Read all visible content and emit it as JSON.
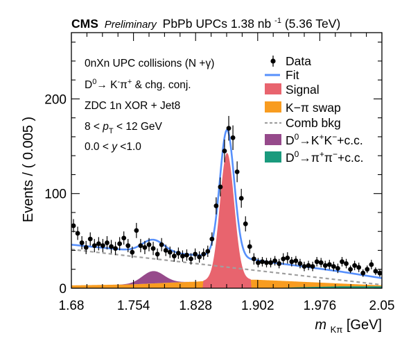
{
  "header": {
    "cms": "CMS",
    "preliminary": "Preliminary",
    "dataset_pre": "PbPb UPCs 1.38 nb",
    "dataset_exp": "-1",
    "dataset_post": " (5.36 TeV)"
  },
  "annotations": {
    "line1": "0nXn UPC collisions (N +γ)",
    "line2_a": "D",
    "line2_sup0": "0",
    "line2_b": "→ K",
    "line2_supm": "-",
    "line2_c": "π",
    "line2_supp": "+",
    "line2_d": " & chg. conj.",
    "line3": "ZDC 1n XOR + Jet8",
    "line4_a": "8 < ",
    "line4_p": "p",
    "line4_sub": "T",
    "line4_b": " < 12 GeV",
    "line5_a": "0.0 < ",
    "line5_y": "y",
    "line5_b": " <1.0"
  },
  "legend": {
    "data": "Data",
    "fit": "Fit",
    "signal": "Signal",
    "swap": "K−π swap",
    "comb": "Comb bkg",
    "kk_a": "D",
    "kk_sup0": "0",
    "kk_b": "→K",
    "kk_supp": "+",
    "kk_c": "K",
    "kk_supm": "−",
    "kk_d": "+c.c.",
    "pipi_a": "D",
    "pipi_sup0": "0",
    "pipi_b": "→π",
    "pipi_supp": "+",
    "pipi_c": "π",
    "pipi_supm": "−",
    "pipi_d": "+c.c."
  },
  "chart_data": {
    "type": "scatter",
    "xlabel_m": "m",
    "xlabel_sub": "Kπ",
    "xlabel_unit": " [GeV]",
    "ylabel": "Events / ( 0.005 )",
    "xlim": [
      1.68,
      2.05
    ],
    "ylim": [
      0,
      270
    ],
    "x_ticks": [
      "1.68",
      "1.754",
      "1.828",
      "1.902",
      "1.976",
      "2.05"
    ],
    "y_ticks": [
      "0",
      "100",
      "200"
    ],
    "colors": {
      "data": "#000000",
      "fit": "#5790fc",
      "signal": "#e8646e",
      "swap": "#f89c20",
      "comb": "#a0a0a0",
      "kk": "#964a8b",
      "pipi": "#1a9a7d"
    },
    "data_points": [
      [
        1.6825,
        66,
        7
      ],
      [
        1.6875,
        58,
        7
      ],
      [
        1.6925,
        48,
        7
      ],
      [
        1.6975,
        43,
        7
      ],
      [
        1.7025,
        52,
        7
      ],
      [
        1.7075,
        45,
        7
      ],
      [
        1.7125,
        47,
        7
      ],
      [
        1.7175,
        45,
        7
      ],
      [
        1.7225,
        48,
        7
      ],
      [
        1.7275,
        44,
        7
      ],
      [
        1.7325,
        42,
        7
      ],
      [
        1.7375,
        47,
        7
      ],
      [
        1.7425,
        53,
        7
      ],
      [
        1.7475,
        45,
        7
      ],
      [
        1.7525,
        38,
        6
      ],
      [
        1.7575,
        61,
        8
      ],
      [
        1.7625,
        45,
        7
      ],
      [
        1.7675,
        43,
        7
      ],
      [
        1.7725,
        46,
        7
      ],
      [
        1.7775,
        42,
        7
      ],
      [
        1.7825,
        36,
        6
      ],
      [
        1.7875,
        46,
        7
      ],
      [
        1.7925,
        40,
        6
      ],
      [
        1.7975,
        38,
        6
      ],
      [
        1.8025,
        34,
        6
      ],
      [
        1.8075,
        37,
        6
      ],
      [
        1.8125,
        34,
        6
      ],
      [
        1.8175,
        35,
        6
      ],
      [
        1.8225,
        31,
        6
      ],
      [
        1.8275,
        36,
        6
      ],
      [
        1.8325,
        33,
        6
      ],
      [
        1.8375,
        36,
        6
      ],
      [
        1.8425,
        39,
        6
      ],
      [
        1.8475,
        52,
        7
      ],
      [
        1.8525,
        87,
        9
      ],
      [
        1.8575,
        107,
        10
      ],
      [
        1.8625,
        145,
        12
      ],
      [
        1.8675,
        169,
        13
      ],
      [
        1.8725,
        159,
        13
      ],
      [
        1.8775,
        123,
        11
      ],
      [
        1.8825,
        95,
        10
      ],
      [
        1.8875,
        68,
        8
      ],
      [
        1.8925,
        44,
        7
      ],
      [
        1.8975,
        31,
        6
      ],
      [
        1.9025,
        27,
        5
      ],
      [
        1.9075,
        28,
        5
      ],
      [
        1.9125,
        27,
        5
      ],
      [
        1.9175,
        27,
        5
      ],
      [
        1.9225,
        29,
        5
      ],
      [
        1.9275,
        26,
        5
      ],
      [
        1.9325,
        31,
        6
      ],
      [
        1.9375,
        32,
        6
      ],
      [
        1.9425,
        28,
        5
      ],
      [
        1.9475,
        29,
        5
      ],
      [
        1.9525,
        26,
        5
      ],
      [
        1.9575,
        23,
        5
      ],
      [
        1.9625,
        24,
        5
      ],
      [
        1.9675,
        23,
        5
      ],
      [
        1.9725,
        28,
        5
      ],
      [
        1.9775,
        27,
        5
      ],
      [
        1.9825,
        24,
        5
      ],
      [
        1.9875,
        25,
        5
      ],
      [
        1.9925,
        23,
        5
      ],
      [
        1.9975,
        21,
        5
      ],
      [
        2.0025,
        28,
        5
      ],
      [
        2.0075,
        26,
        5
      ],
      [
        2.0125,
        20,
        4
      ],
      [
        2.0175,
        24,
        5
      ],
      [
        2.0225,
        22,
        5
      ],
      [
        2.0275,
        16,
        4
      ],
      [
        2.0325,
        20,
        4
      ],
      [
        2.0375,
        25,
        5
      ],
      [
        2.0425,
        18,
        4
      ],
      [
        2.0475,
        16,
        4
      ]
    ],
    "model": {
      "signal": {
        "mean": 1.8655,
        "sigma": 0.0085,
        "amplitude": 134
      },
      "comb": {
        "intercept_at_xmin": 41,
        "slope_per_gev": -101
      },
      "swap_points": [
        [
          1.68,
          3
        ],
        [
          1.75,
          4
        ],
        [
          1.8,
          6
        ],
        [
          1.83,
          7
        ],
        [
          1.86,
          9
        ],
        [
          1.9,
          9
        ],
        [
          1.95,
          7
        ],
        [
          2.0,
          5
        ],
        [
          2.05,
          3
        ]
      ],
      "kk": {
        "mean": 1.7775,
        "sigma": 0.013,
        "amplitude": 13
      },
      "pipi_points": [
        [
          1.68,
          0
        ],
        [
          1.92,
          0
        ],
        [
          1.95,
          1
        ],
        [
          2.0,
          2
        ],
        [
          2.05,
          2
        ]
      ],
      "fit_offset": 2
    }
  }
}
